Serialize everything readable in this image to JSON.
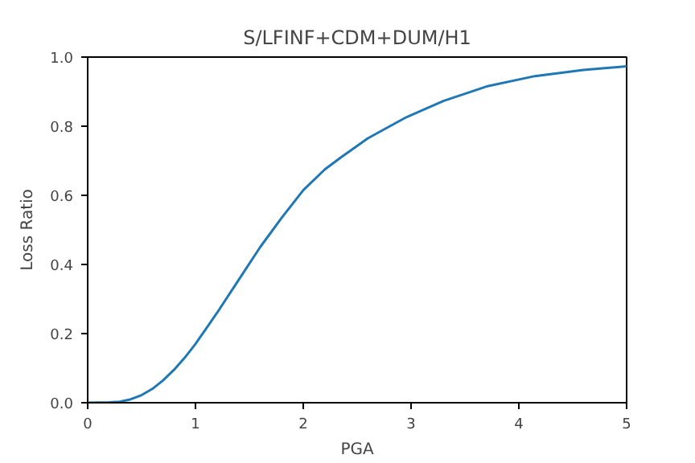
{
  "chart_data": {
    "type": "line",
    "title": "S/LFINF+CDM+DUM/H1",
    "xlabel": "PGA",
    "ylabel": "Loss Ratio",
    "x": [
      0,
      0.2,
      0.3,
      0.4,
      0.5,
      0.6,
      0.7,
      0.8,
      0.9,
      1.0,
      1.2,
      1.4,
      1.6,
      1.8,
      2.0,
      2.2,
      2.35,
      2.6,
      2.95,
      3.3,
      3.7,
      4.15,
      4.6,
      5.0
    ],
    "series": [
      {
        "color": "#1f77b4",
        "values": [
          0,
          0.001,
          0.003,
          0.01,
          0.022,
          0.04,
          0.065,
          0.095,
          0.13,
          0.17,
          0.26,
          0.355,
          0.45,
          0.535,
          0.615,
          0.675,
          0.71,
          0.765,
          0.825,
          0.873,
          0.915,
          0.945,
          0.963,
          0.973
        ]
      }
    ],
    "xlim": [
      0,
      5
    ],
    "ylim": [
      0,
      1.0
    ],
    "xticks": [
      0,
      1,
      2,
      3,
      4,
      5
    ],
    "yticks": [
      {
        "value": 0,
        "label": "0.0"
      },
      {
        "value": 0.2,
        "label": "0.2"
      },
      {
        "value": 0.4,
        "label": "0.4"
      },
      {
        "value": 0.6,
        "label": "0.6"
      },
      {
        "value": 0.8,
        "label": "0.8"
      },
      {
        "value": 1.0,
        "label": "1.0"
      }
    ],
    "grid": false,
    "marker": "none",
    "line_style": "solid"
  }
}
